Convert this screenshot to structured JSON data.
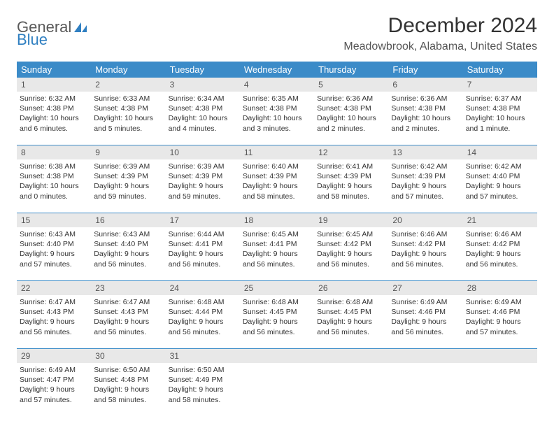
{
  "logo": {
    "text1": "General",
    "text2": "Blue"
  },
  "title": "December 2024",
  "location": "Meadowbrook, Alabama, United States",
  "colors": {
    "header_bg": "#3b8bc8",
    "header_text": "#ffffff",
    "daynum_bg": "#e8e8e8",
    "body_text": "#333333",
    "rule": "#3b8bc8"
  },
  "weekdays": [
    "Sunday",
    "Monday",
    "Tuesday",
    "Wednesday",
    "Thursday",
    "Friday",
    "Saturday"
  ],
  "days": [
    {
      "n": 1,
      "sunrise": "6:32 AM",
      "sunset": "4:38 PM",
      "daylight": "10 hours and 6 minutes."
    },
    {
      "n": 2,
      "sunrise": "6:33 AM",
      "sunset": "4:38 PM",
      "daylight": "10 hours and 5 minutes."
    },
    {
      "n": 3,
      "sunrise": "6:34 AM",
      "sunset": "4:38 PM",
      "daylight": "10 hours and 4 minutes."
    },
    {
      "n": 4,
      "sunrise": "6:35 AM",
      "sunset": "4:38 PM",
      "daylight": "10 hours and 3 minutes."
    },
    {
      "n": 5,
      "sunrise": "6:36 AM",
      "sunset": "4:38 PM",
      "daylight": "10 hours and 2 minutes."
    },
    {
      "n": 6,
      "sunrise": "6:36 AM",
      "sunset": "4:38 PM",
      "daylight": "10 hours and 2 minutes."
    },
    {
      "n": 7,
      "sunrise": "6:37 AM",
      "sunset": "4:38 PM",
      "daylight": "10 hours and 1 minute."
    },
    {
      "n": 8,
      "sunrise": "6:38 AM",
      "sunset": "4:38 PM",
      "daylight": "10 hours and 0 minutes."
    },
    {
      "n": 9,
      "sunrise": "6:39 AM",
      "sunset": "4:39 PM",
      "daylight": "9 hours and 59 minutes."
    },
    {
      "n": 10,
      "sunrise": "6:39 AM",
      "sunset": "4:39 PM",
      "daylight": "9 hours and 59 minutes."
    },
    {
      "n": 11,
      "sunrise": "6:40 AM",
      "sunset": "4:39 PM",
      "daylight": "9 hours and 58 minutes."
    },
    {
      "n": 12,
      "sunrise": "6:41 AM",
      "sunset": "4:39 PM",
      "daylight": "9 hours and 58 minutes."
    },
    {
      "n": 13,
      "sunrise": "6:42 AM",
      "sunset": "4:39 PM",
      "daylight": "9 hours and 57 minutes."
    },
    {
      "n": 14,
      "sunrise": "6:42 AM",
      "sunset": "4:40 PM",
      "daylight": "9 hours and 57 minutes."
    },
    {
      "n": 15,
      "sunrise": "6:43 AM",
      "sunset": "4:40 PM",
      "daylight": "9 hours and 57 minutes."
    },
    {
      "n": 16,
      "sunrise": "6:43 AM",
      "sunset": "4:40 PM",
      "daylight": "9 hours and 56 minutes."
    },
    {
      "n": 17,
      "sunrise": "6:44 AM",
      "sunset": "4:41 PM",
      "daylight": "9 hours and 56 minutes."
    },
    {
      "n": 18,
      "sunrise": "6:45 AM",
      "sunset": "4:41 PM",
      "daylight": "9 hours and 56 minutes."
    },
    {
      "n": 19,
      "sunrise": "6:45 AM",
      "sunset": "4:42 PM",
      "daylight": "9 hours and 56 minutes."
    },
    {
      "n": 20,
      "sunrise": "6:46 AM",
      "sunset": "4:42 PM",
      "daylight": "9 hours and 56 minutes."
    },
    {
      "n": 21,
      "sunrise": "6:46 AM",
      "sunset": "4:42 PM",
      "daylight": "9 hours and 56 minutes."
    },
    {
      "n": 22,
      "sunrise": "6:47 AM",
      "sunset": "4:43 PM",
      "daylight": "9 hours and 56 minutes."
    },
    {
      "n": 23,
      "sunrise": "6:47 AM",
      "sunset": "4:43 PM",
      "daylight": "9 hours and 56 minutes."
    },
    {
      "n": 24,
      "sunrise": "6:48 AM",
      "sunset": "4:44 PM",
      "daylight": "9 hours and 56 minutes."
    },
    {
      "n": 25,
      "sunrise": "6:48 AM",
      "sunset": "4:45 PM",
      "daylight": "9 hours and 56 minutes."
    },
    {
      "n": 26,
      "sunrise": "6:48 AM",
      "sunset": "4:45 PM",
      "daylight": "9 hours and 56 minutes."
    },
    {
      "n": 27,
      "sunrise": "6:49 AM",
      "sunset": "4:46 PM",
      "daylight": "9 hours and 56 minutes."
    },
    {
      "n": 28,
      "sunrise": "6:49 AM",
      "sunset": "4:46 PM",
      "daylight": "9 hours and 57 minutes."
    },
    {
      "n": 29,
      "sunrise": "6:49 AM",
      "sunset": "4:47 PM",
      "daylight": "9 hours and 57 minutes."
    },
    {
      "n": 30,
      "sunrise": "6:50 AM",
      "sunset": "4:48 PM",
      "daylight": "9 hours and 58 minutes."
    },
    {
      "n": 31,
      "sunrise": "6:50 AM",
      "sunset": "4:49 PM",
      "daylight": "9 hours and 58 minutes."
    }
  ],
  "labels": {
    "sunrise": "Sunrise: ",
    "sunset": "Sunset: ",
    "daylight": "Daylight: "
  },
  "layout": {
    "first_weekday_index": 0,
    "total_cells": 35
  }
}
